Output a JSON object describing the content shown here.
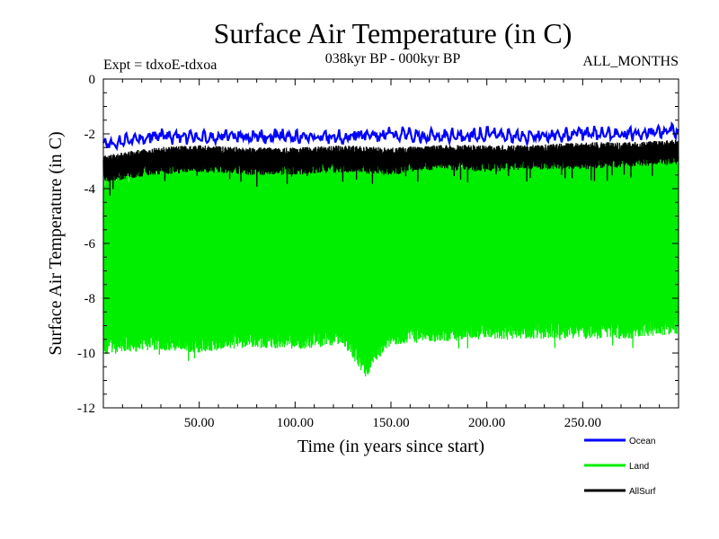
{
  "chart_data": {
    "type": "line",
    "title": "Surface Air Temperature (in C)",
    "subtitle": "038kyr BP - 000kyr BP",
    "left_note": "Expt = tdxoE-tdxoa",
    "right_note": "ALL_MONTHS",
    "xlabel": "Time (in years since start)",
    "ylabel": "Surface Air Temperature (in C)",
    "xlim": [
      0,
      300
    ],
    "ylim": [
      -12,
      0
    ],
    "x_ticks": [
      {
        "value": 50,
        "label": "50.00"
      },
      {
        "value": 100,
        "label": "100.00"
      },
      {
        "value": 150,
        "label": "150.00"
      },
      {
        "value": 200,
        "label": "200.00"
      },
      {
        "value": 250,
        "label": "250.00"
      }
    ],
    "y_ticks": [
      {
        "value": 0,
        "label": "0"
      },
      {
        "value": -2,
        "label": "-2"
      },
      {
        "value": -4,
        "label": "-4"
      },
      {
        "value": -6,
        "label": "-6"
      },
      {
        "value": -8,
        "label": "-8"
      },
      {
        "value": -10,
        "label": "-10"
      },
      {
        "value": -12,
        "label": "-12"
      }
    ],
    "legend_position": "bottom-right",
    "series": [
      {
        "name": "Land",
        "color": "#00ee00",
        "x": [
          0,
          25,
          50,
          75,
          100,
          125,
          137,
          150,
          175,
          200,
          225,
          250,
          275,
          300
        ],
        "upper": [
          -3.9,
          -3.5,
          -3.3,
          -3.3,
          -3.2,
          -3.3,
          -3.4,
          -3.2,
          -3.2,
          -3.1,
          -3.0,
          -3.0,
          -3.0,
          -2.8
        ],
        "lower": [
          -9.6,
          -9.4,
          -9.5,
          -9.3,
          -9.4,
          -9.2,
          -10.4,
          -9.2,
          -9.1,
          -9.0,
          -9.0,
          -9.0,
          -9.0,
          -8.8
        ],
        "min_value": -10.6
      },
      {
        "name": "AllSurf",
        "color": "#000000",
        "x": [
          0,
          25,
          50,
          75,
          100,
          125,
          150,
          175,
          200,
          225,
          250,
          275,
          300
        ],
        "upper": [
          -2.8,
          -2.5,
          -2.4,
          -2.5,
          -2.5,
          -2.4,
          -2.5,
          -2.4,
          -2.4,
          -2.4,
          -2.3,
          -2.3,
          -2.2
        ],
        "lower": [
          -3.8,
          -3.5,
          -3.4,
          -3.5,
          -3.5,
          -3.4,
          -3.5,
          -3.3,
          -3.4,
          -3.3,
          -3.3,
          -3.2,
          -3.1
        ]
      },
      {
        "name": "Ocean",
        "color": "#0000ff",
        "x": [
          0,
          25,
          50,
          75,
          100,
          125,
          150,
          175,
          200,
          225,
          250,
          275,
          300
        ],
        "values": [
          -2.4,
          -2.1,
          -2.1,
          -2.1,
          -2.1,
          -2.1,
          -2.0,
          -2.1,
          -2.0,
          -2.1,
          -2.0,
          -2.0,
          -1.9
        ]
      }
    ],
    "legend": [
      {
        "name": "Ocean",
        "color": "#0000ff"
      },
      {
        "name": "Land",
        "color": "#00ee00"
      },
      {
        "name": "AllSurf",
        "color": "#000000"
      }
    ]
  }
}
